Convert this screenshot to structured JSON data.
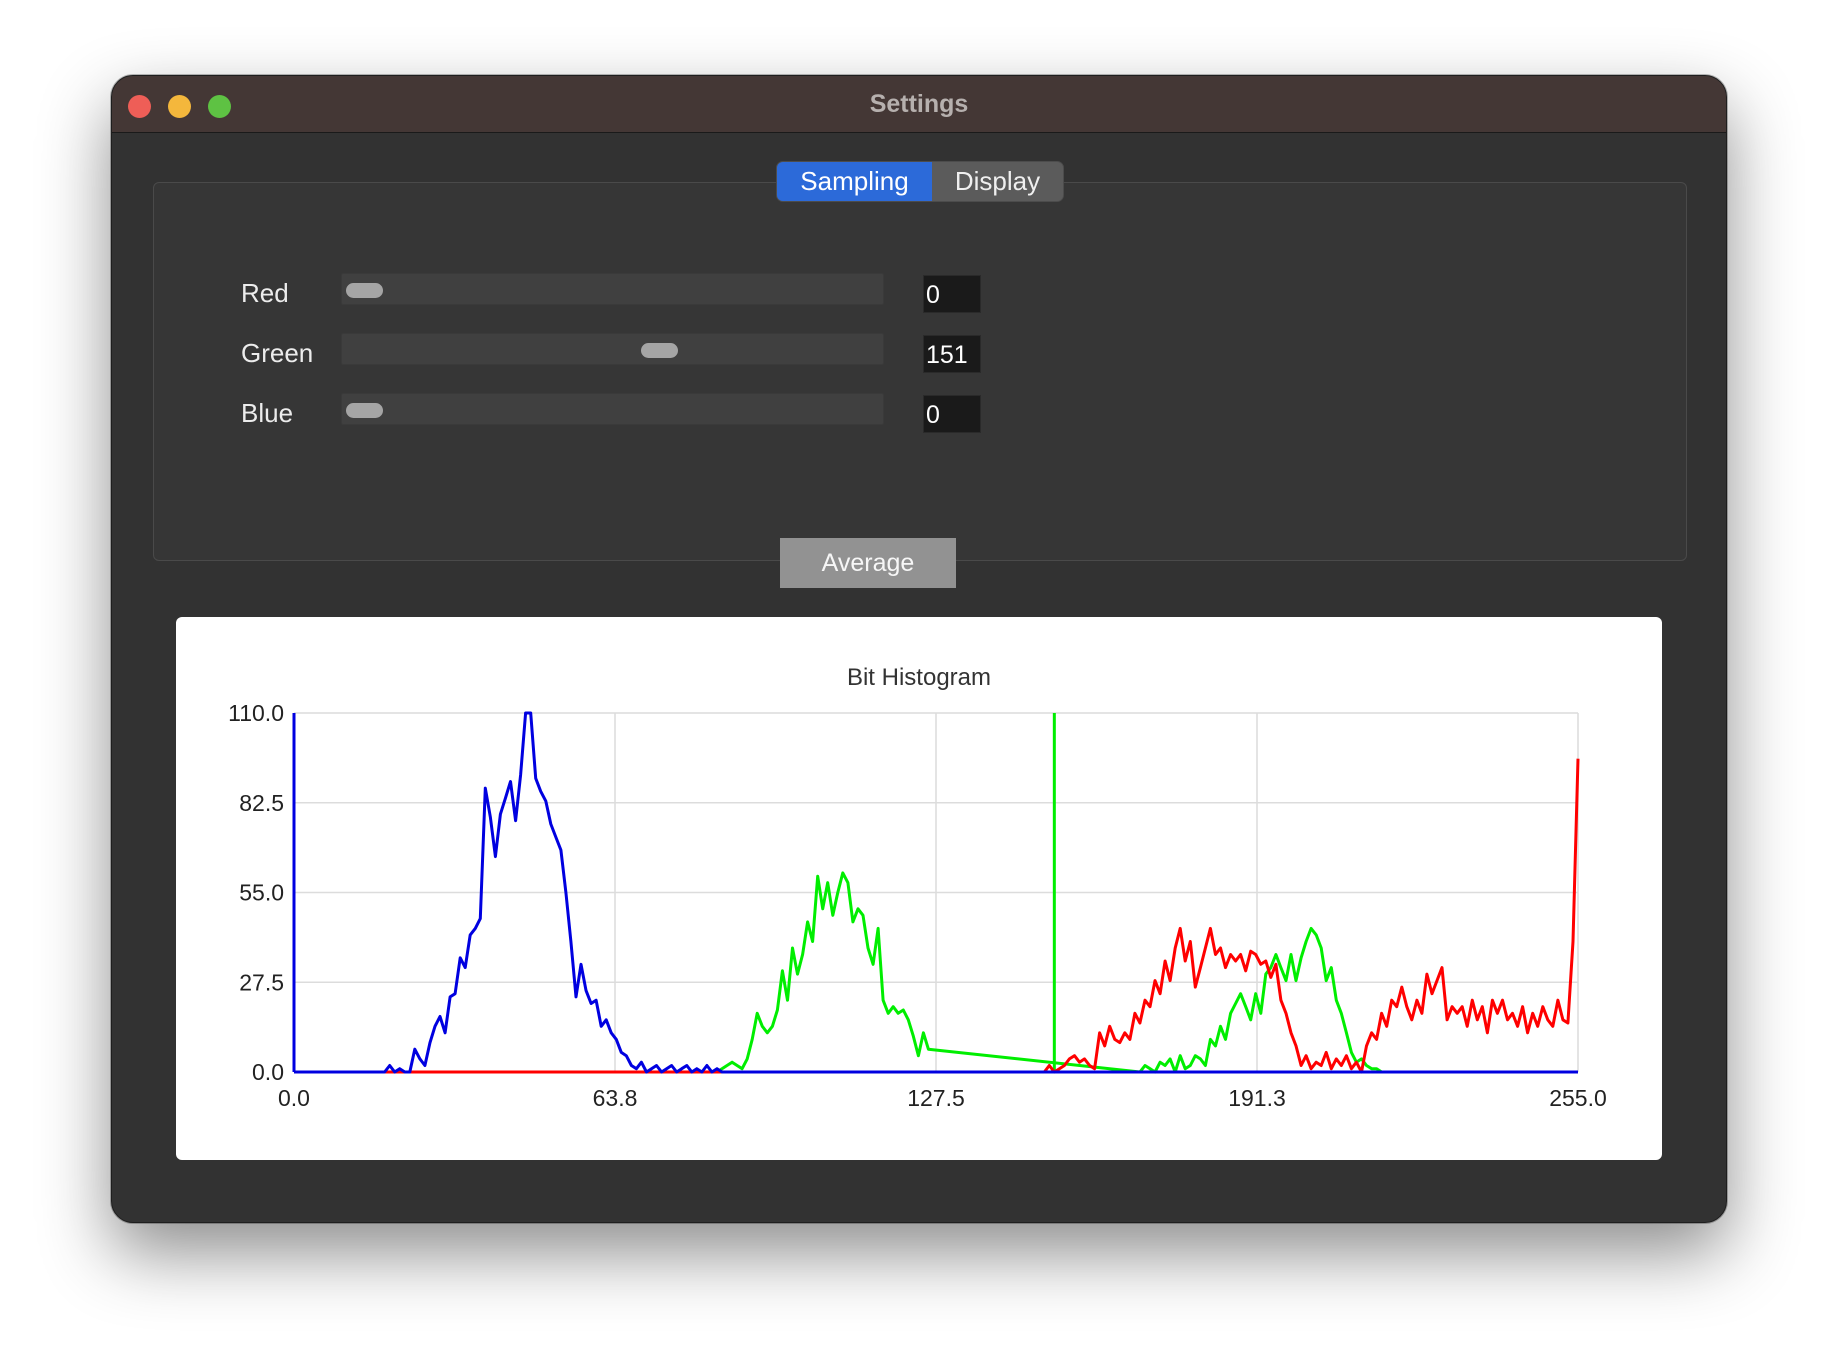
{
  "window": {
    "title": "Settings"
  },
  "tabs": [
    {
      "label": "Sampling",
      "active": true
    },
    {
      "label": "Display",
      "active": false
    }
  ],
  "sliders": [
    {
      "label": "Red",
      "value": "0",
      "level": 0
    },
    {
      "label": "Green",
      "value": "151",
      "level": 151
    },
    {
      "label": "Blue",
      "value": "0",
      "level": 0
    }
  ],
  "slider_max": 255,
  "average_button": {
    "label": "Average"
  },
  "colors": {
    "red": "#ff0000",
    "green": "#00ee00",
    "blue": "#0000e0",
    "accent": "#2c6ad9"
  },
  "chart_data": {
    "type": "line",
    "title": "Bit Histogram",
    "xlabel": "",
    "ylabel": "",
    "xlim": [
      0,
      255
    ],
    "ylim": [
      0,
      110
    ],
    "x_ticks": [
      "0.0",
      "63.8",
      "127.5",
      "191.3",
      "255.0"
    ],
    "y_ticks": [
      "0.0",
      "27.5",
      "55.0",
      "82.5",
      "110.0"
    ],
    "grid": true,
    "vertical_marker": {
      "x": 151,
      "color": "#00ee00"
    },
    "series": [
      {
        "color": "#0000e0",
        "x": [
          0,
          18,
          19,
          20,
          21,
          22,
          23,
          24,
          25,
          26,
          27,
          28,
          29,
          30,
          31,
          32,
          33,
          34,
          35,
          36,
          37,
          38,
          39,
          40,
          41,
          42,
          43,
          44,
          45,
          46,
          47,
          48,
          49,
          50,
          51,
          52,
          53,
          54,
          55,
          56,
          57,
          58,
          59,
          60,
          61,
          62,
          63,
          64,
          65,
          66,
          67,
          68,
          69,
          70,
          71,
          72,
          73,
          74,
          75,
          76,
          77,
          78,
          79,
          80,
          81,
          82,
          83,
          84,
          85,
          255
        ],
        "y": [
          0,
          0,
          2,
          0,
          1,
          0,
          0,
          7,
          4,
          2,
          9,
          14,
          17,
          12,
          23,
          24,
          35,
          32,
          42,
          44,
          47,
          87,
          78,
          66,
          79,
          84,
          89,
          77,
          91,
          110,
          110,
          90,
          86,
          83,
          76,
          72,
          68,
          55,
          40,
          23,
          33,
          25,
          21,
          22,
          14,
          16,
          12,
          10,
          6,
          5,
          2,
          1,
          3,
          0,
          1,
          2,
          0,
          1,
          2,
          0,
          1,
          2,
          0,
          1,
          0,
          2,
          0,
          1,
          0,
          0
        ]
      },
      {
        "color": "#00ee00",
        "x": [
          0,
          84,
          85,
          86,
          87,
          88,
          89,
          90,
          91,
          92,
          93,
          94,
          95,
          96,
          97,
          98,
          99,
          100,
          101,
          102,
          103,
          104,
          105,
          106,
          107,
          108,
          109,
          110,
          111,
          112,
          113,
          114,
          115,
          116,
          117,
          118,
          119,
          120,
          121,
          122,
          123,
          124,
          125,
          126,
          168,
          169,
          170,
          171,
          172,
          173,
          174,
          175,
          176,
          177,
          178,
          179,
          180,
          181,
          182,
          183,
          184,
          185,
          186,
          187,
          188,
          189,
          190,
          191,
          192,
          193,
          194,
          195,
          196,
          197,
          198,
          199,
          200,
          201,
          202,
          203,
          204,
          205,
          206,
          207,
          208,
          209,
          210,
          211,
          212,
          213,
          214,
          215,
          216,
          217,
          218,
          219,
          220,
          255
        ],
        "y": [
          0,
          0,
          1,
          2,
          3,
          2,
          1,
          4,
          10,
          18,
          14,
          12,
          14,
          19,
          31,
          22,
          38,
          30,
          36,
          46,
          40,
          60,
          50,
          58,
          48,
          55,
          61,
          58,
          46,
          50,
          48,
          38,
          33,
          44,
          22,
          18,
          20,
          18,
          19,
          16,
          11,
          5,
          12,
          7,
          0,
          2,
          1,
          0,
          3,
          2,
          4,
          0,
          5,
          1,
          2,
          5,
          4,
          2,
          10,
          8,
          14,
          10,
          18,
          21,
          24,
          20,
          16,
          24,
          18,
          30,
          32,
          36,
          32,
          28,
          36,
          28,
          35,
          40,
          44,
          42,
          38,
          28,
          32,
          22,
          18,
          12,
          6,
          3,
          4,
          2,
          1,
          1,
          0,
          0,
          0,
          0,
          0,
          0
        ]
      },
      {
        "color": "#ff0000",
        "x": [
          0,
          149,
          150,
          151,
          152,
          153,
          154,
          155,
          156,
          157,
          158,
          159,
          160,
          161,
          162,
          163,
          164,
          165,
          166,
          167,
          168,
          169,
          170,
          171,
          172,
          173,
          174,
          175,
          176,
          177,
          178,
          179,
          180,
          181,
          182,
          183,
          184,
          185,
          186,
          187,
          188,
          189,
          190,
          191,
          192,
          193,
          194,
          195,
          196,
          197,
          198,
          199,
          200,
          201,
          202,
          203,
          204,
          205,
          206,
          207,
          208,
          209,
          210,
          211,
          212,
          213,
          214,
          215,
          216,
          217,
          218,
          219,
          220,
          221,
          222,
          223,
          224,
          225,
          226,
          227,
          228,
          229,
          230,
          231,
          232,
          233,
          234,
          235,
          236,
          237,
          238,
          239,
          240,
          241,
          242,
          243,
          244,
          245,
          246,
          247,
          248,
          249,
          250,
          251,
          252,
          253,
          254,
          255
        ],
        "y": [
          0,
          0,
          2,
          0,
          1,
          2,
          4,
          5,
          3,
          4,
          2,
          1,
          12,
          8,
          14,
          10,
          9,
          12,
          10,
          18,
          15,
          22,
          20,
          28,
          24,
          34,
          28,
          38,
          44,
          34,
          40,
          26,
          32,
          38,
          44,
          36,
          38,
          32,
          36,
          34,
          36,
          31,
          37,
          36,
          33,
          34,
          29,
          33,
          22,
          18,
          12,
          8,
          2,
          5,
          1,
          3,
          2,
          6,
          1,
          4,
          2,
          5,
          1,
          3,
          0,
          8,
          12,
          10,
          18,
          14,
          22,
          20,
          26,
          20,
          16,
          22,
          18,
          30,
          24,
          28,
          32,
          16,
          20,
          18,
          20,
          14,
          22,
          16,
          20,
          12,
          22,
          18,
          22,
          16,
          18,
          14,
          20,
          12,
          18,
          14,
          20,
          16,
          14,
          22,
          16,
          15,
          40,
          96
        ]
      }
    ]
  }
}
